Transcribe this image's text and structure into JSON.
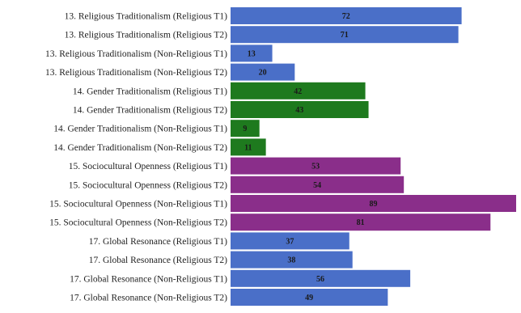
{
  "chart_data": {
    "type": "bar",
    "orientation": "horizontal",
    "xlim": [
      0,
      89
    ],
    "grid": false,
    "legend": "none",
    "categories": [
      "13. Religious Traditionalism (Religious T1)",
      "13. Religious Traditionalism (Religious T2)",
      "13. Religious Traditionalism (Non-Religious T1)",
      "13. Religious Traditionalism (Non-Religious T2)",
      "14. Gender Traditionalism (Religious T1)",
      "14. Gender Traditionalism (Religious T2)",
      "14. Gender Traditionalism (Non-Religious T1)",
      "14. Gender Traditionalism (Non-Religious T2)",
      "15. Sociocultural Openness (Religious T1)",
      "15. Sociocultural Openness (Religious T2)",
      "15. Sociocultural Openness (Non-Religious T1)",
      "15. Sociocultural Openness (Non-Religious T2)",
      "17. Global Resonance (Religious T1)",
      "17. Global Resonance (Religious T2)",
      "17. Global Resonance (Non-Religious T1)",
      "17. Global Resonance (Non-Religious T2)"
    ],
    "values": [
      72,
      71,
      13,
      20,
      42,
      43,
      9,
      11,
      53,
      54,
      89,
      81,
      37,
      38,
      56,
      49
    ],
    "value_labels": [
      "72",
      "71",
      "13",
      "20",
      "42",
      "43",
      "9",
      "11",
      "53",
      "54",
      "89",
      "81",
      "37",
      "38",
      "56",
      "49"
    ],
    "bar_colors": [
      "#4a6fc8",
      "#4a6fc8",
      "#4a6fc8",
      "#4a6fc8",
      "#1e7a1e",
      "#1e7a1e",
      "#1e7a1e",
      "#1e7a1e",
      "#8a2e8a",
      "#8a2e8a",
      "#8a2e8a",
      "#8a2e8a",
      "#4a6fc8",
      "#4a6fc8",
      "#4a6fc8",
      "#4a6fc8"
    ]
  }
}
